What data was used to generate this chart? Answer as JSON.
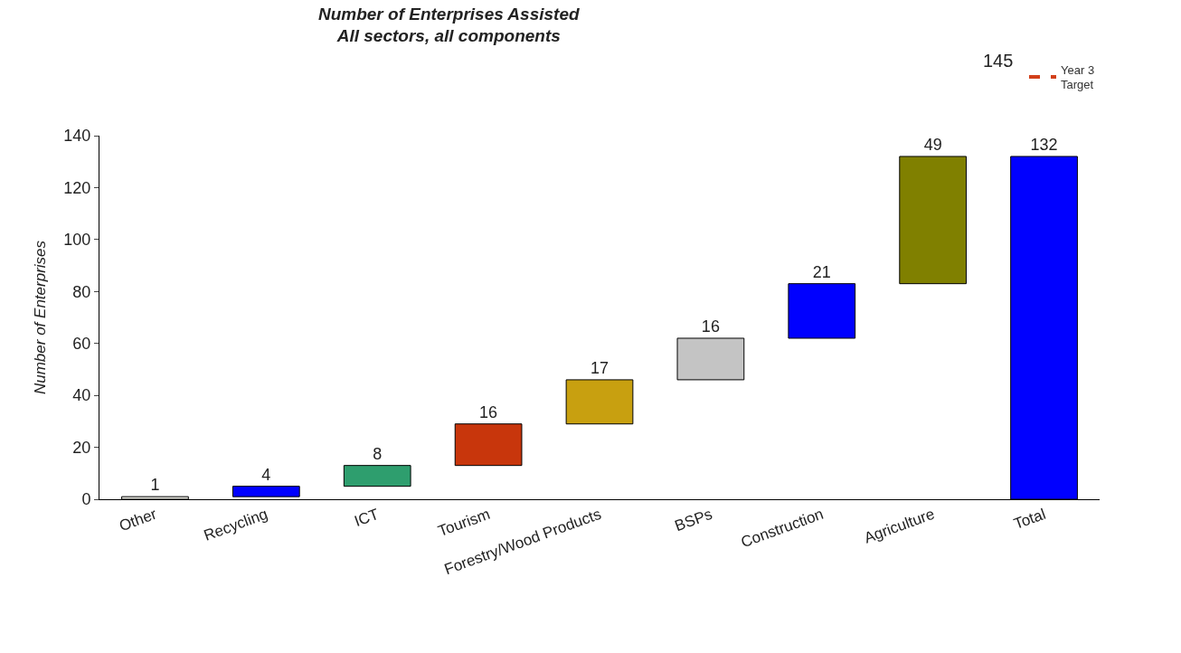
{
  "chart_data": {
    "type": "bar",
    "title": "Number of Enterprises Assisted\nAll sectors, all components",
    "ylabel": "Number of Enterprises",
    "categories": [
      "Other",
      "Recycling",
      "ICT",
      "Tourism",
      "Forestry/Wood Products",
      "BSPs",
      "Construction",
      "Agriculture",
      "Total"
    ],
    "series": [
      {
        "base": [
          0,
          1,
          5,
          13,
          29,
          46,
          62,
          83,
          0
        ],
        "values": [
          1,
          4,
          8,
          16,
          17,
          16,
          21,
          49,
          132
        ],
        "colors": [
          "#e8e8e0",
          "#0000ff",
          "#2e9e6e",
          "#c8360c",
          "#c8a010",
          "#c4c4c4",
          "#0000ff",
          "#808000",
          "#0000ff"
        ]
      },
      {
        "type": "line",
        "name": "Year 3\nTarget",
        "color": "#d2401a",
        "line_style": "dashed",
        "values": [
          null,
          null,
          null,
          null,
          null,
          null,
          null,
          null,
          null
        ]
      }
    ],
    "annotations": [
      "145"
    ],
    "data_labels": true,
    "ylim": [
      0,
      140
    ],
    "yticks": [
      0,
      20,
      40,
      60,
      80,
      100,
      120,
      140
    ],
    "legend": "top right"
  }
}
